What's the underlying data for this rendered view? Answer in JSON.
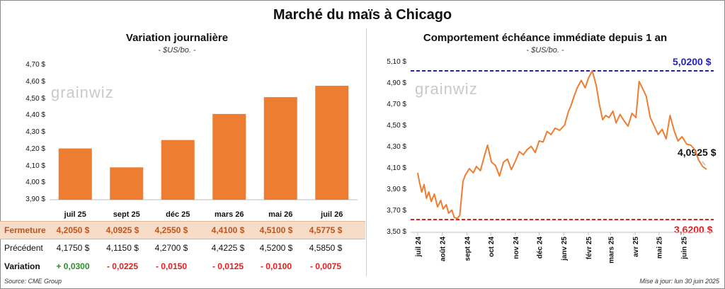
{
  "main_title": "Marché du maïs à Chicago",
  "left_panel": {
    "title": "Variation  journalière",
    "unit": "- $US/bo. -",
    "watermark": "grainwiz",
    "bar_color": "#ed7d31"
  },
  "right_panel": {
    "title": "Comportement  échéance immédiate depuis 1 an",
    "unit": "- $US/bo. -",
    "watermark": "grainwiz",
    "line_color": "#ed7d31",
    "high_label": "5,0200 $",
    "low_label": "3,6200 $",
    "last_label": "4,0925 $"
  },
  "table": {
    "row_labels": {
      "close": "Fermeture",
      "previous": "Précédent",
      "change": "Variation"
    },
    "close": [
      "4,2050  $",
      "4,0925  $",
      "4,2550  $",
      "4,4100  $",
      "4,5100  $",
      "4,5775  $"
    ],
    "previous": [
      "4,1750  $",
      "4,1150  $",
      "4,2700  $",
      "4,4225  $",
      "4,5200  $",
      "4,5850  $"
    ],
    "change": [
      "+ 0,0300",
      "- 0,0225",
      "- 0,0150",
      "- 0,0125",
      "- 0,0100",
      "- 0,0075"
    ]
  },
  "footer": {
    "source": "Source: CME Group",
    "updated": "Mise à jour: lun 30 juin 2025"
  },
  "chart_data": [
    {
      "type": "bar",
      "title": "Variation  journalière",
      "ylabel": "- $US/bo. -",
      "categories": [
        "juil 25",
        "sept 25",
        "déc 25",
        "mars 26",
        "mai 26",
        "juil 26"
      ],
      "values": [
        4.205,
        4.0925,
        4.255,
        4.41,
        4.51,
        4.5775
      ],
      "ylim": [
        3.9,
        4.7
      ],
      "yticks": [
        "3,90 $",
        "4,00 $",
        "4,10 $",
        "4,20 $",
        "4,30 $",
        "4,40 $",
        "4,50 $",
        "4,60 $",
        "4,70 $"
      ],
      "ytick_values": [
        3.9,
        4.0,
        4.1,
        4.2,
        4.3,
        4.4,
        4.5,
        4.6,
        4.7
      ]
    },
    {
      "type": "line",
      "title": "Comportement  échéance immédiate depuis 1 an",
      "ylabel": "- $US/bo. -",
      "ylim": [
        3.5,
        5.1
      ],
      "yticks": [
        "3,50 $",
        "3,70 $",
        "3,90 $",
        "4,10 $",
        "4,30 $",
        "4,50 $",
        "4,70 $",
        "4,90 $",
        "5,10 $"
      ],
      "ytick_values": [
        3.5,
        3.7,
        3.9,
        4.1,
        4.3,
        4.5,
        4.7,
        4.9,
        5.1
      ],
      "xticks": [
        "juil 24",
        "août 24",
        "sept 24",
        "oct 24",
        "nov 24",
        "déc 24",
        "janv 25",
        "févr 25",
        "mars 25",
        "avr 25",
        "mai 25",
        "juin 25"
      ],
      "xlim": [
        "2024-07-01",
        "2025-06-30"
      ],
      "high": 5.02,
      "low": 3.62,
      "last": 4.0925,
      "series": [
        {
          "x": [
            "2024-07-01",
            "2024-07-03",
            "2024-07-06",
            "2024-07-09",
            "2024-07-12",
            "2024-07-15",
            "2024-07-18",
            "2024-07-22",
            "2024-07-26",
            "2024-07-30",
            "2024-08-02",
            "2024-08-06",
            "2024-08-09",
            "2024-08-13",
            "2024-08-16",
            "2024-08-20",
            "2024-08-23",
            "2024-08-27",
            "2024-08-30",
            "2024-09-04",
            "2024-09-09",
            "2024-09-13",
            "2024-09-18",
            "2024-09-23",
            "2024-09-27",
            "2024-10-02",
            "2024-10-07",
            "2024-10-12",
            "2024-10-17",
            "2024-10-22",
            "2024-10-27",
            "2024-11-01",
            "2024-11-06",
            "2024-11-11",
            "2024-11-16",
            "2024-11-21",
            "2024-11-26",
            "2024-12-01",
            "2024-12-06",
            "2024-12-11",
            "2024-12-16",
            "2024-12-21",
            "2024-12-27",
            "2025-01-02",
            "2025-01-07",
            "2025-01-10",
            "2025-01-14",
            "2025-01-18",
            "2025-01-23",
            "2025-01-28",
            "2025-02-01",
            "2025-02-06",
            "2025-02-11",
            "2025-02-15",
            "2025-02-19",
            "2025-02-23",
            "2025-02-27",
            "2025-03-04",
            "2025-03-08",
            "2025-03-13",
            "2025-03-18",
            "2025-03-23",
            "2025-03-28",
            "2025-04-02",
            "2025-04-06",
            "2025-04-10",
            "2025-04-15",
            "2025-04-20",
            "2025-04-25",
            "2025-04-30",
            "2025-05-05",
            "2025-05-10",
            "2025-05-15",
            "2025-05-20",
            "2025-05-25",
            "2025-05-30",
            "2025-06-05",
            "2025-06-10",
            "2025-06-15",
            "2025-06-20",
            "2025-06-25",
            "2025-06-30"
          ],
          "y": [
            4.06,
            3.98,
            3.88,
            3.95,
            3.82,
            3.88,
            3.79,
            3.86,
            3.74,
            3.8,
            3.72,
            3.76,
            3.68,
            3.71,
            3.64,
            3.63,
            3.66,
            3.98,
            4.04,
            4.1,
            4.06,
            4.12,
            4.08,
            4.22,
            4.32,
            4.16,
            4.13,
            4.03,
            4.16,
            4.19,
            4.09,
            4.17,
            4.26,
            4.23,
            4.28,
            4.31,
            4.25,
            4.36,
            4.35,
            4.45,
            4.42,
            4.48,
            4.46,
            4.51,
            4.64,
            4.69,
            4.78,
            4.86,
            4.93,
            4.86,
            4.95,
            5.02,
            4.88,
            4.7,
            4.56,
            4.6,
            4.58,
            4.64,
            4.53,
            4.61,
            4.55,
            4.5,
            4.62,
            4.58,
            4.92,
            4.86,
            4.78,
            4.58,
            4.5,
            4.42,
            4.47,
            4.38,
            4.6,
            4.46,
            4.36,
            4.4,
            4.33,
            4.32,
            4.28,
            4.18,
            4.12,
            4.0925
          ]
        }
      ]
    }
  ]
}
